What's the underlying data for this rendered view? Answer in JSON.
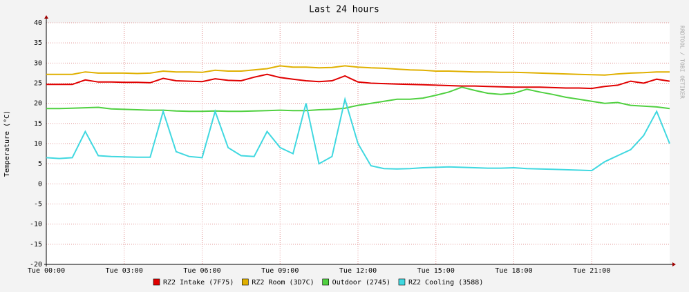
{
  "chart_data": {
    "type": "line",
    "title": "Last 24 hours",
    "ylabel": "Temperature (°C)",
    "side_label": "RRDTOOL / TOBI OETIKER",
    "x": [
      0,
      0.5,
      1,
      1.5,
      2,
      2.5,
      3,
      3.5,
      4,
      4.5,
      5,
      5.5,
      6,
      6.5,
      7,
      7.5,
      8,
      8.5,
      9,
      9.5,
      10,
      10.5,
      11,
      11.5,
      12,
      12.5,
      13,
      13.5,
      14,
      14.5,
      15,
      15.5,
      16,
      16.5,
      17,
      17.5,
      18,
      18.5,
      19,
      19.5,
      20,
      20.5,
      21,
      21.5,
      22,
      22.5,
      23,
      23.5,
      24
    ],
    "xlim": [
      0,
      24
    ],
    "xticks": [
      {
        "value": 0,
        "label": "Tue 00:00"
      },
      {
        "value": 3,
        "label": "Tue 03:00"
      },
      {
        "value": 6,
        "label": "Tue 06:00"
      },
      {
        "value": 9,
        "label": "Tue 09:00"
      },
      {
        "value": 12,
        "label": "Tue 12:00"
      },
      {
        "value": 15,
        "label": "Tue 15:00"
      },
      {
        "value": 18,
        "label": "Tue 18:00"
      },
      {
        "value": 21,
        "label": "Tue 21:00"
      }
    ],
    "ylim": [
      -20,
      40
    ],
    "yticks": [
      -20,
      -15,
      -10,
      -5,
      0,
      5,
      10,
      15,
      20,
      25,
      30,
      35,
      40
    ],
    "grid": true,
    "series": [
      {
        "name": "RZ2 Intake (7F75)",
        "color": "#e00000",
        "values": [
          24.7,
          24.7,
          24.7,
          25.8,
          25.3,
          25.3,
          25.2,
          25.2,
          25.1,
          26.2,
          25.6,
          25.5,
          25.4,
          26.1,
          25.7,
          25.6,
          26.5,
          27.2,
          26.4,
          26,
          25.6,
          25.4,
          25.6,
          26.8,
          25.3,
          25,
          24.9,
          24.8,
          24.7,
          24.6,
          24.5,
          24.4,
          24.3,
          24.3,
          24.2,
          24.1,
          24,
          24,
          24,
          23.9,
          23.8,
          23.8,
          23.7,
          24.2,
          24.5,
          25.5,
          25,
          26,
          25.5
        ]
      },
      {
        "name": "RZ2 Room (3D7C)",
        "color": "#e0b000",
        "values": [
          27.2,
          27.2,
          27.2,
          27.8,
          27.5,
          27.5,
          27.5,
          27.4,
          27.5,
          28,
          27.8,
          27.8,
          27.7,
          28.2,
          28,
          28,
          28.3,
          28.6,
          29.3,
          29,
          29,
          28.8,
          28.9,
          29.3,
          29,
          28.8,
          28.7,
          28.5,
          28.3,
          28.2,
          28,
          28,
          27.9,
          27.8,
          27.8,
          27.7,
          27.7,
          27.6,
          27.5,
          27.4,
          27.3,
          27.2,
          27.1,
          27,
          27.3,
          27.5,
          27.6,
          27.8,
          27.8
        ]
      },
      {
        "name": "Outdoor (2745)",
        "color": "#50d040",
        "values": [
          18.7,
          18.7,
          18.8,
          18.9,
          19,
          18.6,
          18.5,
          18.4,
          18.3,
          18.3,
          18.1,
          18,
          18,
          18.1,
          18,
          18,
          18.1,
          18.2,
          18.3,
          18.2,
          18.2,
          18.4,
          18.5,
          18.8,
          19.5,
          20,
          20.5,
          21,
          21,
          21.3,
          22,
          22.8,
          24,
          23.2,
          22.5,
          22.2,
          22.5,
          23.5,
          22.8,
          22.2,
          21.5,
          21,
          20.5,
          20,
          20.2,
          19.5,
          19.3,
          19.1,
          18.7
        ]
      },
      {
        "name": "RZ2 Cooling (3588)",
        "color": "#40d8e0",
        "values": [
          6.5,
          6.3,
          6.5,
          13,
          7,
          6.8,
          6.7,
          6.6,
          6.6,
          18,
          8,
          6.8,
          6.5,
          18,
          9,
          7,
          6.8,
          13,
          9,
          7.5,
          20,
          5,
          6.8,
          21,
          10,
          4.5,
          3.8,
          3.7,
          3.8,
          4,
          4.1,
          4.2,
          4.1,
          4,
          3.9,
          3.9,
          4,
          3.8,
          3.7,
          3.6,
          3.5,
          3.4,
          3.3,
          5.5,
          7,
          8.5,
          12,
          18,
          10
        ]
      }
    ]
  }
}
